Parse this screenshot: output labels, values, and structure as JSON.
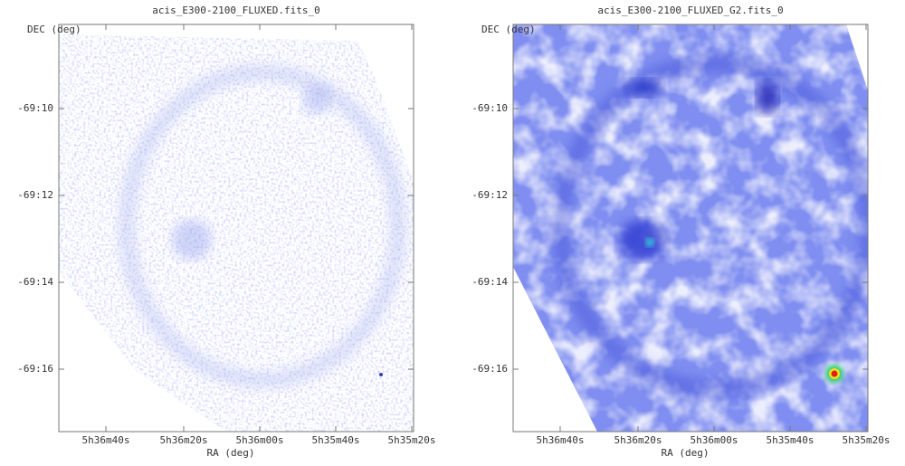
{
  "panels": [
    {
      "title": "acis_E300-2100_FLUXED.fits_0",
      "y_label": "DEC (deg)",
      "x_label": "RA (deg)",
      "yticks": [
        "-69:10",
        "-69:12",
        "-69:14",
        "-69:16"
      ],
      "xticks": [
        "5h36m40s",
        "5h36m20s",
        "5h36m00s",
        "5h35m40s",
        "5h35m20s"
      ]
    },
    {
      "title": "acis_E300-2100_FLUXED_G2.fits_0",
      "y_label": "DEC (deg)",
      "x_label": "RA (deg)",
      "yticks": [
        "-69:10",
        "-69:12",
        "-69:14",
        "-69:16"
      ],
      "xticks": [
        "5h36m40s",
        "5h36m20s",
        "5h36m00s",
        "5h35m40s",
        "5h35m20s"
      ]
    }
  ]
}
